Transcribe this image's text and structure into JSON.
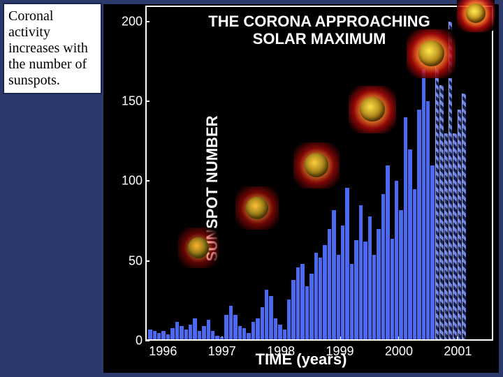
{
  "annotation": {
    "text": "Coronal activity increases with the number of sunspots."
  },
  "chart": {
    "type": "bar",
    "title_line1": "THE CORONA APPROACHING",
    "title_line2": "SOLAR MAXIMUM",
    "title_fontsize": 22,
    "xlabel": "TIME (years)",
    "ylabel": "SUNSPOT NUMBER",
    "label_fontsize": 22,
    "tick_fontsize": 18,
    "background_color": "#000000",
    "page_background": "#2b3a6b",
    "bar_color": "#4a68f0",
    "hatch_fg": "#7086e6",
    "hatch_bg": "#1a2250",
    "axis_color": "#ffffff",
    "x_start": 1995.7,
    "x_end": 2001.6,
    "xticks": [
      1996,
      1997,
      1998,
      1999,
      2000,
      2001
    ],
    "ylim": [
      0,
      210
    ],
    "yticks": [
      0,
      50,
      100,
      150,
      200
    ],
    "bar_interval_years": 0.076,
    "values": [
      7,
      6,
      5,
      6,
      4,
      8,
      12,
      9,
      7,
      10,
      14,
      6,
      9,
      13,
      6,
      3,
      2,
      16,
      22,
      16,
      9,
      8,
      5,
      12,
      14,
      21,
      32,
      28,
      14,
      10,
      7,
      26,
      38,
      46,
      48,
      34,
      42,
      55,
      52,
      60,
      70,
      82,
      54,
      72,
      96,
      48,
      63,
      85,
      62,
      78,
      54,
      70,
      92,
      110,
      64,
      100,
      82,
      140,
      120,
      95,
      145,
      170,
      150,
      110,
      172,
      160,
      130,
      200,
      130,
      145,
      155
    ],
    "hatched_from_index": 64,
    "sun_insets": [
      {
        "x_year": 1996.6,
        "y_value": 58,
        "size": 58,
        "activity": 0.1
      },
      {
        "x_year": 1997.6,
        "y_value": 83,
        "size": 62,
        "activity": 0.3
      },
      {
        "x_year": 1998.6,
        "y_value": 110,
        "size": 66,
        "activity": 0.5
      },
      {
        "x_year": 1999.55,
        "y_value": 145,
        "size": 68,
        "activity": 0.75
      },
      {
        "x_year": 2000.55,
        "y_value": 180,
        "size": 70,
        "activity": 0.92
      },
      {
        "x_year": 2001.3,
        "y_value": 205,
        "size": 54,
        "activity": 1.0
      }
    ]
  }
}
